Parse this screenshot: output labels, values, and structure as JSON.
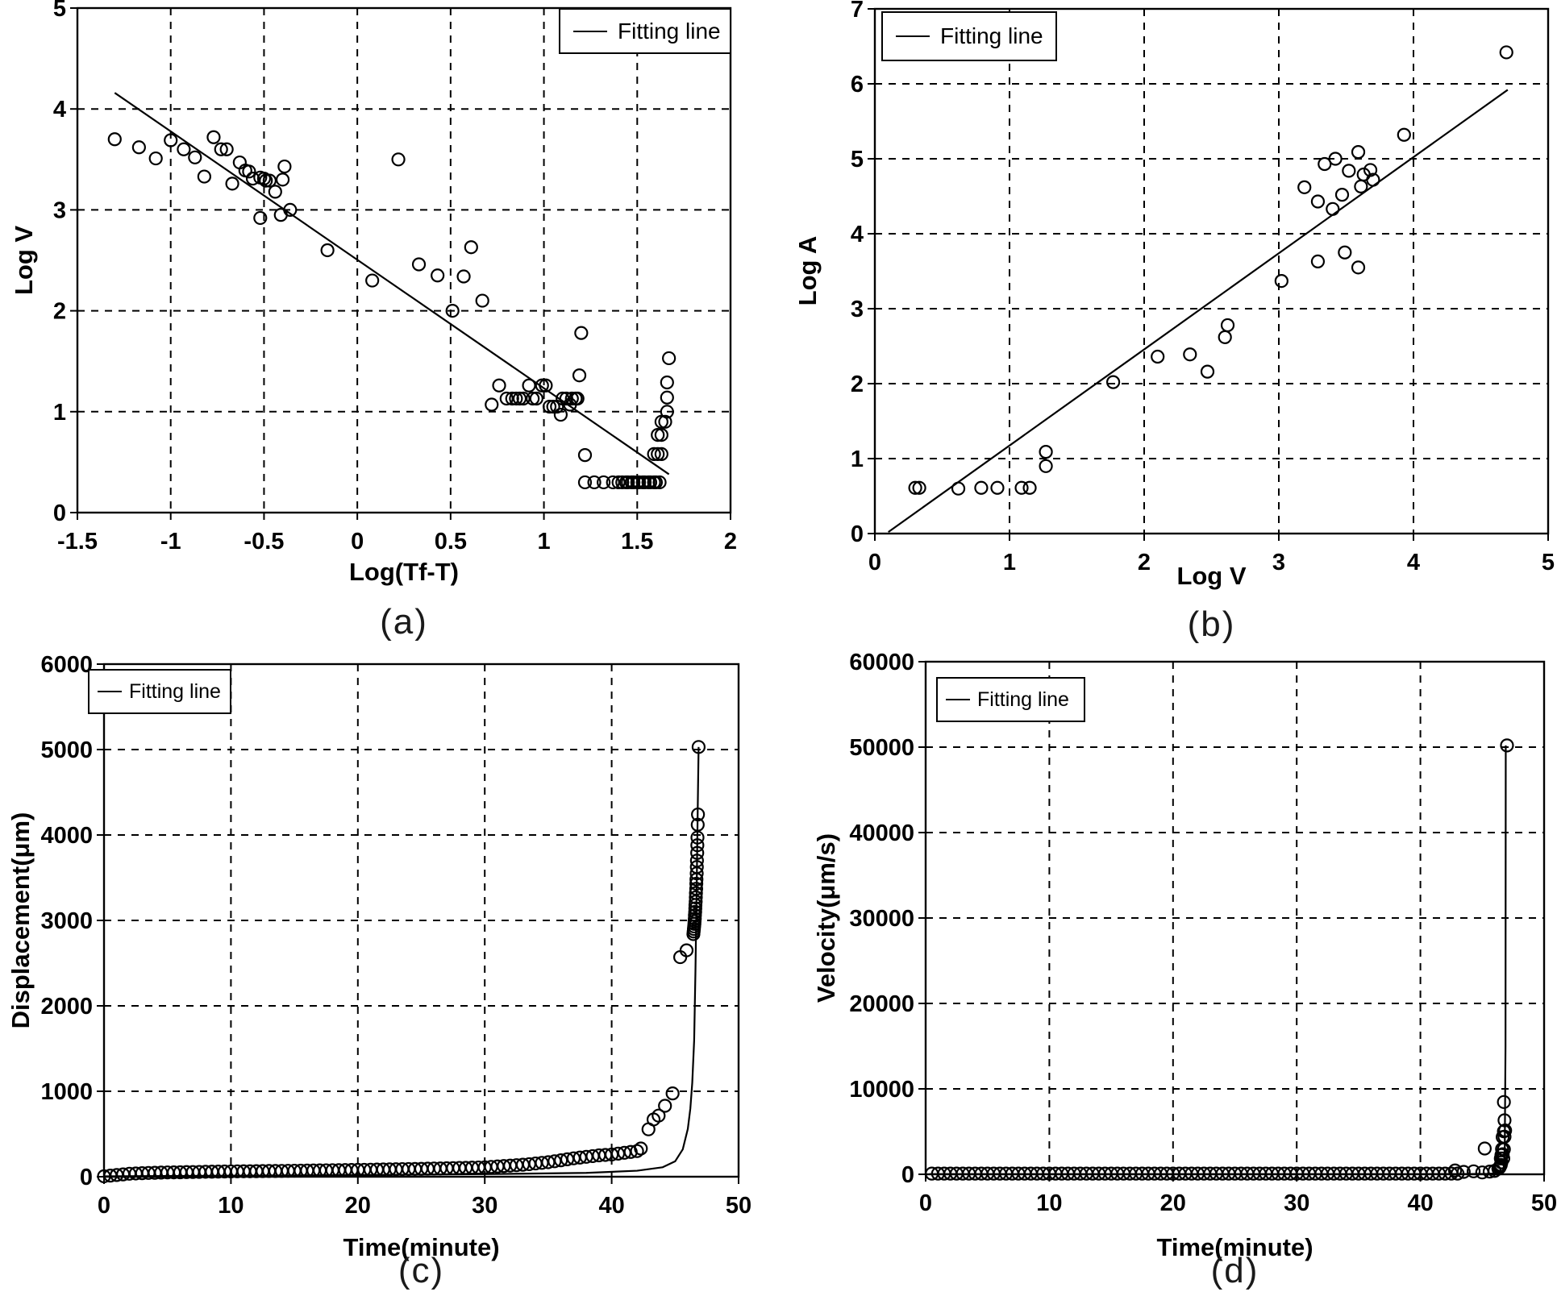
{
  "figure": {
    "legend_label": "Fitting line",
    "sublabels": [
      "(a)",
      "(b)",
      "(c)",
      "(d)"
    ]
  },
  "chart_data": [
    {
      "type": "scatter",
      "title": "",
      "xlabel": "Log(Tf-T)",
      "ylabel": "Log V",
      "legend": "Fitting line",
      "legend_position": "top-right",
      "grid": "dashed",
      "xlim": [
        -1.5,
        2
      ],
      "ylim": [
        0,
        5
      ],
      "xticks": [
        [
          -1.5,
          "-1.5"
        ],
        [
          -1,
          "-1"
        ],
        [
          -0.5,
          "-0.5"
        ],
        [
          0,
          "0"
        ],
        [
          0.5,
          "0.5"
        ],
        [
          1,
          "1"
        ],
        [
          1.5,
          "1.5"
        ],
        [
          2,
          "2"
        ]
      ],
      "yticks": [
        [
          0,
          "0"
        ],
        [
          1,
          "1"
        ],
        [
          2,
          "2"
        ],
        [
          3,
          "3"
        ],
        [
          4,
          "4"
        ],
        [
          5,
          "5"
        ]
      ],
      "xgrid": [
        -1,
        -0.5,
        0,
        0.5,
        1,
        1.5
      ],
      "ygrid": [
        1,
        2,
        3,
        4
      ],
      "fit_line": [
        [
          -1.3,
          4.16
        ],
        [
          1.67,
          0.38
        ]
      ],
      "points": [
        [
          -1.3,
          3.7
        ],
        [
          -1.17,
          3.62
        ],
        [
          -1.08,
          3.51
        ],
        [
          -1.0,
          3.69
        ],
        [
          -0.93,
          3.6
        ],
        [
          -0.87,
          3.52
        ],
        [
          -0.82,
          3.33
        ],
        [
          -0.77,
          3.72
        ],
        [
          -0.73,
          3.6
        ],
        [
          -0.7,
          3.6
        ],
        [
          -0.67,
          3.26
        ],
        [
          -0.63,
          3.47
        ],
        [
          -0.6,
          3.39
        ],
        [
          -0.58,
          3.38
        ],
        [
          -0.56,
          3.31
        ],
        [
          -0.52,
          3.32
        ],
        [
          -0.5,
          3.31
        ],
        [
          -0.49,
          3.29
        ],
        [
          -0.47,
          3.29
        ],
        [
          -0.44,
          3.18
        ],
        [
          -0.4,
          3.3
        ],
        [
          -0.39,
          3.43
        ],
        [
          -0.52,
          2.92
        ],
        [
          -0.41,
          2.95
        ],
        [
          -0.36,
          3.0
        ],
        [
          -0.16,
          2.6
        ],
        [
          0.08,
          2.3
        ],
        [
          0.22,
          3.5
        ],
        [
          0.33,
          2.46
        ],
        [
          0.43,
          2.35
        ],
        [
          0.57,
          2.34
        ],
        [
          0.51,
          2.0
        ],
        [
          0.61,
          2.63
        ],
        [
          0.67,
          2.1
        ],
        [
          0.72,
          1.07
        ],
        [
          0.76,
          1.26
        ],
        [
          0.8,
          1.13
        ],
        [
          0.83,
          1.13
        ],
        [
          0.85,
          1.13
        ],
        [
          0.87,
          1.13
        ],
        [
          0.89,
          1.13
        ],
        [
          0.92,
          1.26
        ],
        [
          0.94,
          1.13
        ],
        [
          0.96,
          1.13
        ],
        [
          0.99,
          1.26
        ],
        [
          1.01,
          1.26
        ],
        [
          1.03,
          1.05
        ],
        [
          1.05,
          1.05
        ],
        [
          1.07,
          1.05
        ],
        [
          1.09,
          0.97
        ],
        [
          1.1,
          1.13
        ],
        [
          1.12,
          1.13
        ],
        [
          1.14,
          1.07
        ],
        [
          1.15,
          1.13
        ],
        [
          1.17,
          1.13
        ],
        [
          1.18,
          1.13
        ],
        [
          1.19,
          1.36
        ],
        [
          1.2,
          1.78
        ],
        [
          1.22,
          0.57
        ],
        [
          1.59,
          0.58
        ],
        [
          1.61,
          0.58
        ],
        [
          1.63,
          0.58
        ],
        [
          1.61,
          0.77
        ],
        [
          1.63,
          0.77
        ],
        [
          1.63,
          0.9
        ],
        [
          1.65,
          0.9
        ],
        [
          1.66,
          1.0
        ],
        [
          1.66,
          1.14
        ],
        [
          1.66,
          1.29
        ],
        [
          1.67,
          1.53
        ],
        [
          1.22,
          0.3
        ],
        [
          1.27,
          0.3
        ],
        [
          1.32,
          0.3
        ],
        [
          1.37,
          0.3
        ],
        [
          1.4,
          0.3
        ],
        [
          1.42,
          0.3
        ],
        [
          1.44,
          0.3
        ],
        [
          1.45,
          0.3
        ],
        [
          1.47,
          0.3
        ],
        [
          1.48,
          0.3
        ],
        [
          1.5,
          0.3
        ],
        [
          1.51,
          0.3
        ],
        [
          1.53,
          0.3
        ],
        [
          1.54,
          0.3
        ],
        [
          1.56,
          0.3
        ],
        [
          1.57,
          0.3
        ],
        [
          1.59,
          0.3
        ],
        [
          1.6,
          0.3
        ],
        [
          1.62,
          0.3
        ]
      ]
    },
    {
      "type": "scatter",
      "title": "",
      "xlabel": "Log V",
      "ylabel": "Log A",
      "legend": "Fitting line",
      "legend_position": "top-left",
      "grid": "dashed",
      "xlim": [
        0,
        5
      ],
      "ylim": [
        0,
        7
      ],
      "xticks": [
        [
          0,
          "0"
        ],
        [
          1,
          "1"
        ],
        [
          2,
          "2"
        ],
        [
          3,
          "3"
        ],
        [
          4,
          "4"
        ],
        [
          5,
          "5"
        ]
      ],
      "yticks": [
        [
          0,
          "0"
        ],
        [
          1,
          "1"
        ],
        [
          2,
          "2"
        ],
        [
          3,
          "3"
        ],
        [
          4,
          "4"
        ],
        [
          5,
          "5"
        ],
        [
          6,
          "6"
        ],
        [
          7,
          "7"
        ]
      ],
      "xgrid": [
        1,
        2,
        3,
        4
      ],
      "ygrid": [
        1,
        2,
        3,
        4,
        5,
        6
      ],
      "fit_line": [
        [
          0.1,
          0.02
        ],
        [
          4.7,
          5.92
        ]
      ],
      "points": [
        [
          0.3,
          0.61
        ],
        [
          0.33,
          0.61
        ],
        [
          0.62,
          0.6
        ],
        [
          0.79,
          0.61
        ],
        [
          0.91,
          0.61
        ],
        [
          1.09,
          0.61
        ],
        [
          1.15,
          0.61
        ],
        [
          1.27,
          1.09
        ],
        [
          1.27,
          0.9
        ],
        [
          1.77,
          2.02
        ],
        [
          2.1,
          2.36
        ],
        [
          2.34,
          2.39
        ],
        [
          2.47,
          2.16
        ],
        [
          2.6,
          2.62
        ],
        [
          2.62,
          2.78
        ],
        [
          3.02,
          3.37
        ],
        [
          3.19,
          4.62
        ],
        [
          3.29,
          4.43
        ],
        [
          3.29,
          3.63
        ],
        [
          3.34,
          4.93
        ],
        [
          3.4,
          4.33
        ],
        [
          3.42,
          5.0
        ],
        [
          3.47,
          4.52
        ],
        [
          3.49,
          3.75
        ],
        [
          3.52,
          4.84
        ],
        [
          3.59,
          5.09
        ],
        [
          3.59,
          3.55
        ],
        [
          3.61,
          4.63
        ],
        [
          3.63,
          4.79
        ],
        [
          3.68,
          4.85
        ],
        [
          3.7,
          4.72
        ],
        [
          3.93,
          5.32
        ],
        [
          4.69,
          6.42
        ]
      ]
    },
    {
      "type": "scatter",
      "title": "",
      "xlabel": "Time(minute)",
      "ylabel": "Displacement(μm)",
      "legend": "Fitting line",
      "legend_position": "top-left",
      "grid": "dashed",
      "xlim": [
        0,
        50
      ],
      "ylim": [
        0,
        6000
      ],
      "xticks": [
        [
          0,
          "0"
        ],
        [
          10,
          "10"
        ],
        [
          20,
          "20"
        ],
        [
          30,
          "30"
        ],
        [
          40,
          "40"
        ],
        [
          50,
          "50"
        ]
      ],
      "yticks": [
        [
          0,
          "0"
        ],
        [
          1000,
          "1000"
        ],
        [
          2000,
          "2000"
        ],
        [
          3000,
          "3000"
        ],
        [
          4000,
          "4000"
        ],
        [
          5000,
          "5000"
        ],
        [
          6000,
          "6000"
        ]
      ],
      "xgrid": [
        10,
        20,
        30,
        40
      ],
      "ygrid": [
        1000,
        2000,
        3000,
        4000,
        5000
      ],
      "fit_line": [
        [
          0,
          5
        ],
        [
          10,
          12
        ],
        [
          20,
          20
        ],
        [
          30,
          30
        ],
        [
          38,
          45
        ],
        [
          42,
          70
        ],
        [
          44,
          110
        ],
        [
          45,
          180
        ],
        [
          45.6,
          320
        ],
        [
          46.0,
          560
        ],
        [
          46.2,
          800
        ],
        [
          46.35,
          1100
        ],
        [
          46.5,
          1600
        ],
        [
          46.6,
          2400
        ],
        [
          46.7,
          3400
        ],
        [
          46.78,
          4300
        ],
        [
          46.85,
          5030
        ]
      ],
      "row": {
        "t0": 0,
        "dt": 0.5,
        "values": [
          5,
          13,
          20,
          27,
          35,
          38,
          41,
          44,
          46,
          48,
          50,
          51,
          52,
          54,
          55,
          56,
          58,
          59,
          60,
          61,
          62,
          63,
          64,
          64,
          65,
          66,
          67,
          67,
          68,
          69,
          70,
          71,
          72,
          73,
          74,
          75,
          76,
          77,
          78,
          79,
          80,
          81,
          82,
          84,
          85,
          86,
          87,
          89,
          90,
          91,
          92,
          94,
          96,
          97,
          99,
          101,
          103,
          104,
          106,
          108,
          110,
          115,
          120,
          125,
          130,
          135,
          140,
          147,
          155,
          162,
          170,
          181,
          192,
          204,
          215,
          224,
          233,
          241,
          250,
          255,
          260,
          270,
          280,
          290,
          300
        ]
      },
      "points": [
        [
          42.3,
          330
        ],
        [
          42.9,
          555
        ],
        [
          43.3,
          670
        ],
        [
          43.7,
          715
        ],
        [
          44.2,
          830
        ],
        [
          44.8,
          975
        ],
        [
          45.4,
          2570
        ],
        [
          45.9,
          2650
        ],
        [
          46.44,
          2840
        ],
        [
          46.46,
          2870
        ],
        [
          46.48,
          2900
        ],
        [
          46.5,
          2930
        ],
        [
          46.52,
          2960
        ],
        [
          46.53,
          2990
        ],
        [
          46.55,
          3020
        ],
        [
          46.56,
          3060
        ],
        [
          46.58,
          3100
        ],
        [
          46.59,
          3140
        ],
        [
          46.6,
          3180
        ],
        [
          46.62,
          3220
        ],
        [
          46.63,
          3270
        ],
        [
          46.64,
          3320
        ],
        [
          46.66,
          3370
        ],
        [
          46.67,
          3430
        ],
        [
          46.68,
          3480
        ],
        [
          46.7,
          3550
        ],
        [
          46.71,
          3625
        ],
        [
          46.72,
          3700
        ],
        [
          46.74,
          3790
        ],
        [
          46.75,
          3880
        ],
        [
          46.76,
          3970
        ],
        [
          46.78,
          4120
        ],
        [
          46.8,
          4240
        ],
        [
          46.85,
          5030
        ]
      ]
    },
    {
      "type": "scatter",
      "title": "",
      "xlabel": "Time(minute)",
      "ylabel": "Velocity(μm/s)",
      "legend": "Fitting line",
      "legend_position": "top-left",
      "grid": "dashed",
      "xlim": [
        0,
        50
      ],
      "ylim": [
        0,
        60000
      ],
      "xticks": [
        [
          0,
          "0"
        ],
        [
          10,
          "10"
        ],
        [
          20,
          "20"
        ],
        [
          30,
          "30"
        ],
        [
          40,
          "40"
        ],
        [
          50,
          "50"
        ]
      ],
      "yticks": [
        [
          0,
          "0"
        ],
        [
          10000,
          "10000"
        ],
        [
          20000,
          "20000"
        ],
        [
          30000,
          "30000"
        ],
        [
          40000,
          "40000"
        ],
        [
          50000,
          "50000"
        ],
        [
          60000,
          "60000"
        ]
      ],
      "xgrid": [
        10,
        20,
        30,
        40
      ],
      "ygrid": [
        10000,
        20000,
        30000,
        40000,
        50000
      ],
      "fit_line": [
        [
          0.3,
          25
        ],
        [
          20,
          25
        ],
        [
          40,
          30
        ],
        [
          44,
          40
        ],
        [
          45.5,
          60
        ],
        [
          46.3,
          120
        ],
        [
          46.6,
          300
        ],
        [
          46.75,
          900
        ],
        [
          46.82,
          3000
        ],
        [
          46.88,
          15000
        ],
        [
          46.9,
          50200
        ]
      ],
      "row": {
        "t0": 0.5,
        "dt": 0.5,
        "values": [
          80,
          80,
          80,
          80,
          80,
          80,
          80,
          80,
          80,
          80,
          80,
          80,
          80,
          80,
          80,
          80,
          80,
          80,
          80,
          80,
          80,
          80,
          80,
          80,
          80,
          80,
          80,
          80,
          80,
          80,
          80,
          80,
          80,
          80,
          80,
          80,
          80,
          80,
          80,
          80,
          80,
          80,
          80,
          80,
          80,
          80,
          80,
          80,
          80,
          80,
          80,
          80,
          80,
          80,
          80,
          80,
          80,
          80,
          80,
          80,
          80,
          80,
          80,
          80,
          80,
          80,
          80,
          80,
          80,
          80,
          80,
          80,
          80,
          80,
          80,
          80,
          80,
          80,
          80,
          80,
          80,
          80,
          80,
          80,
          80,
          80
        ]
      },
      "points": [
        [
          42.8,
          450
        ],
        [
          43.5,
          280
        ],
        [
          44.3,
          350
        ],
        [
          45.0,
          220
        ],
        [
          45.6,
          320
        ],
        [
          46.0,
          400
        ],
        [
          46.3,
          660
        ],
        [
          45.2,
          3020
        ],
        [
          46.4,
          800
        ],
        [
          46.45,
          950
        ],
        [
          46.5,
          1100
        ],
        [
          46.55,
          1400
        ],
        [
          46.5,
          1850
        ],
        [
          46.7,
          1850
        ],
        [
          46.55,
          2250
        ],
        [
          46.65,
          2350
        ],
        [
          46.6,
          2950
        ],
        [
          46.75,
          2920
        ],
        [
          46.65,
          4350
        ],
        [
          46.8,
          4400
        ],
        [
          46.75,
          5030
        ],
        [
          46.85,
          5130
        ],
        [
          46.8,
          6320
        ],
        [
          46.75,
          8460
        ],
        [
          47.0,
          50200
        ]
      ]
    }
  ]
}
